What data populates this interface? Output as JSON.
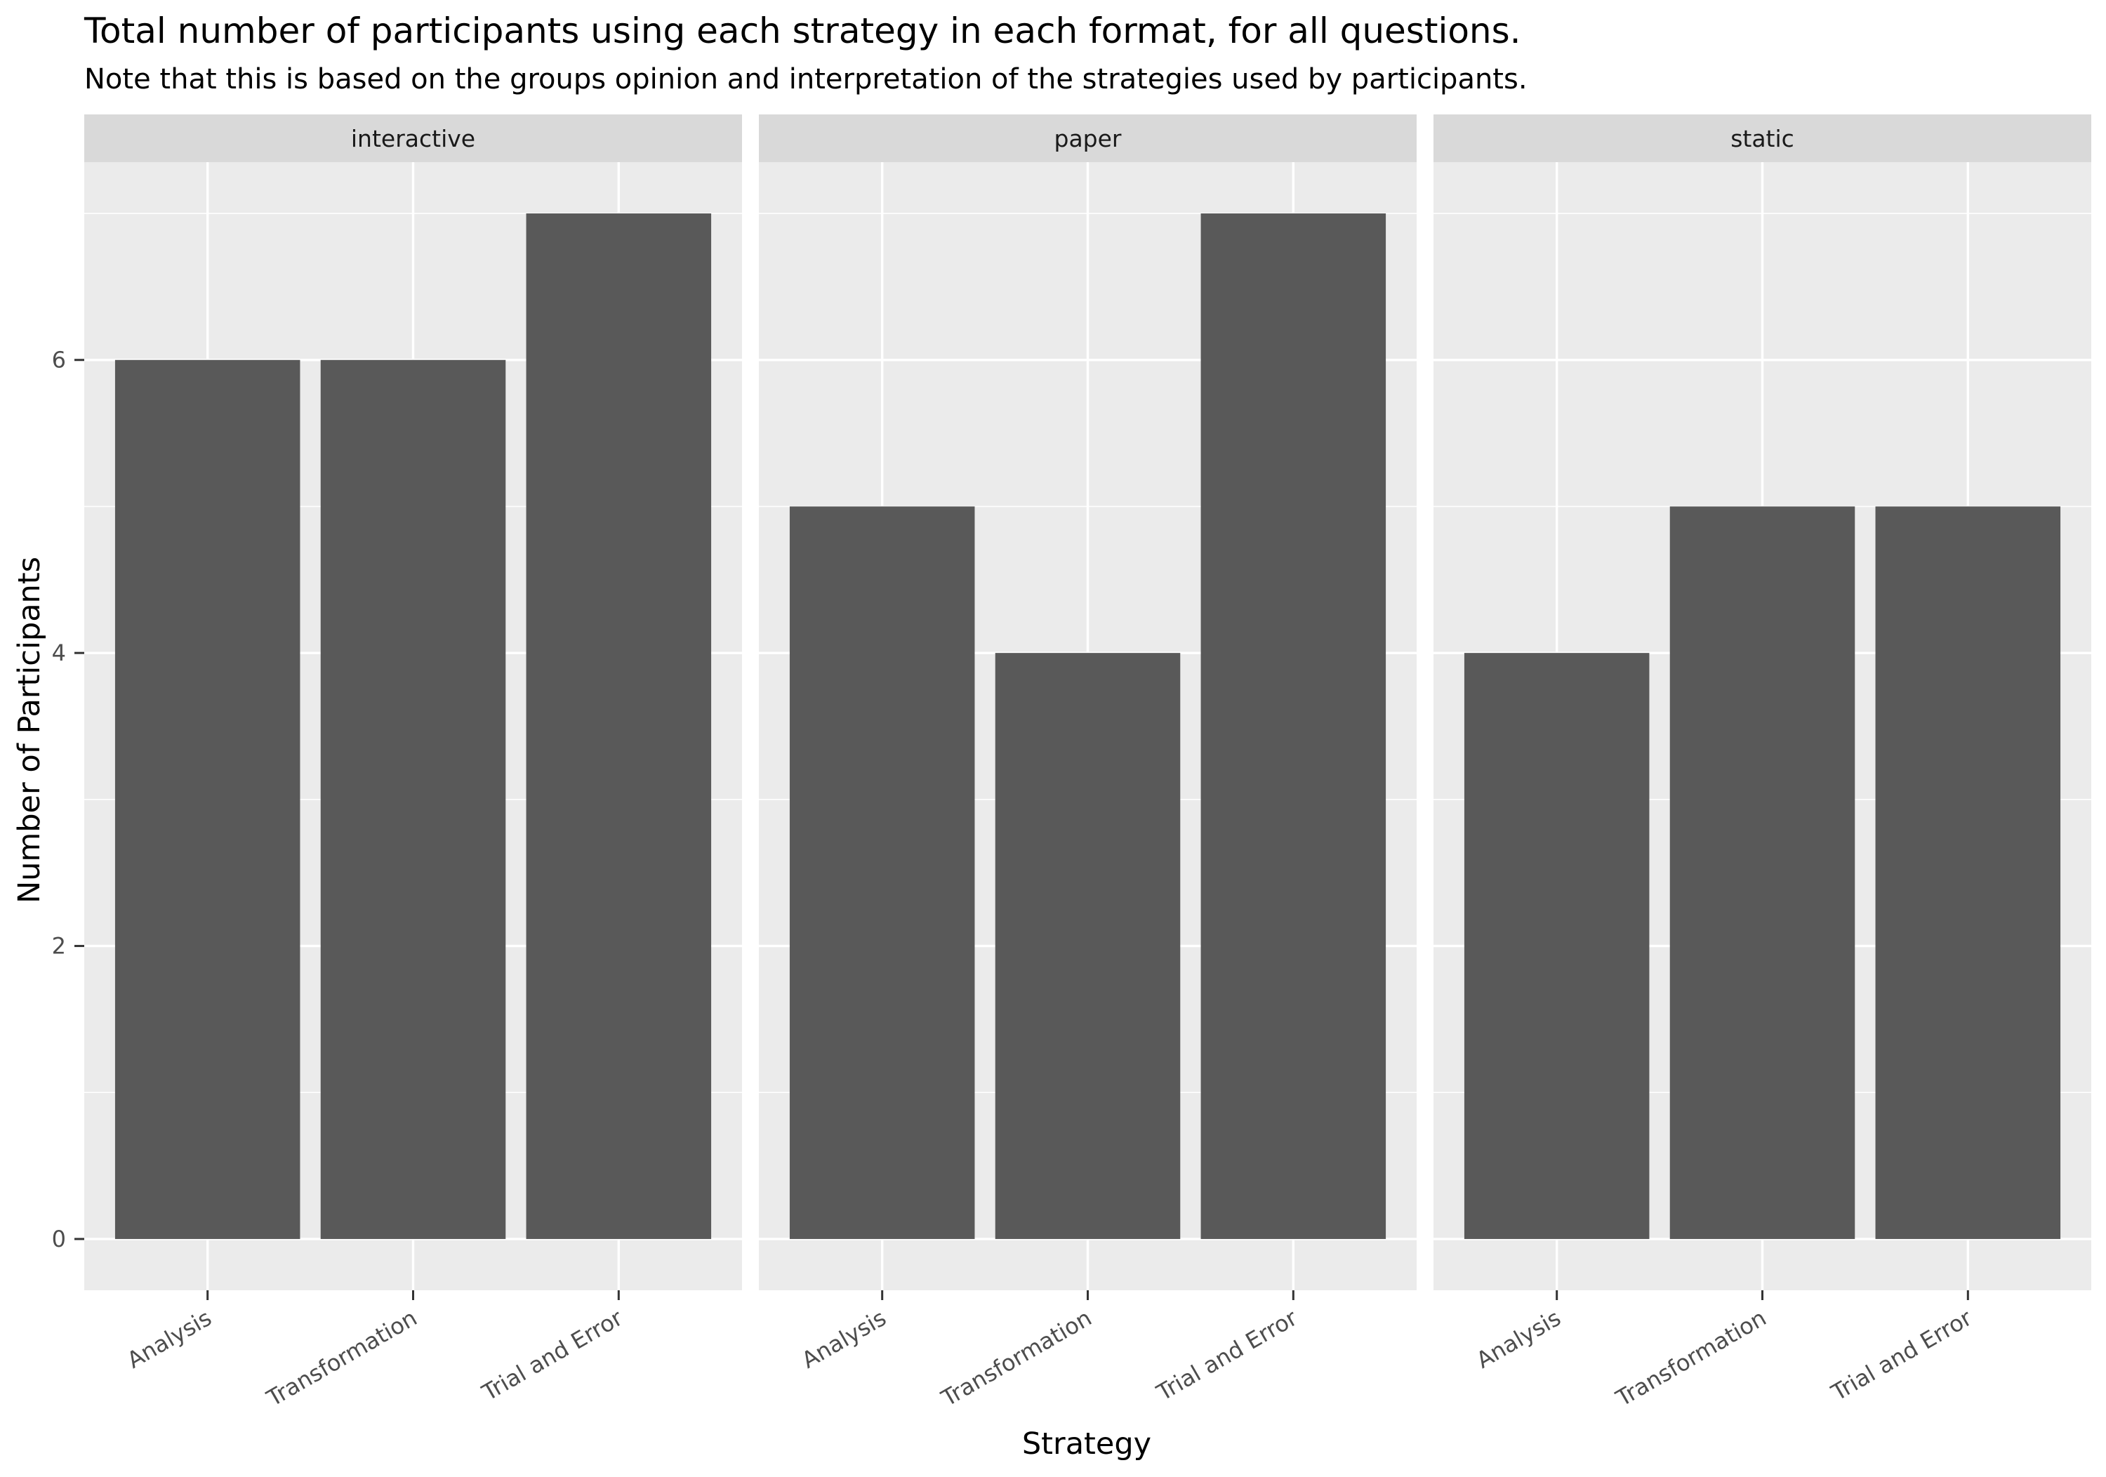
{
  "chart_data": {
    "type": "bar",
    "title": "Total number of participants using each strategy in each format, for all questions.",
    "subtitle": "Note that this is based on the groups opinion and interpretation of the strategies used by participants.",
    "xlabel": "Strategy",
    "ylabel": "Number of Participants",
    "categories": [
      "Analysis",
      "Transformation",
      "Trial and Error"
    ],
    "facets": [
      {
        "name": "interactive",
        "values": [
          6,
          6,
          7
        ]
      },
      {
        "name": "paper",
        "values": [
          5,
          4,
          7
        ]
      },
      {
        "name": "static",
        "values": [
          4,
          5,
          5
        ]
      }
    ],
    "yticks": [
      0,
      2,
      4,
      6
    ],
    "ylim": [
      -0.35,
      7.35
    ],
    "grid": true,
    "legend": "none",
    "colors": {
      "bar": "#595959",
      "panel_bg": "#ebebeb",
      "strip_bg": "#d9d9d9",
      "grid": "#ffffff",
      "tick": "#333333"
    }
  }
}
